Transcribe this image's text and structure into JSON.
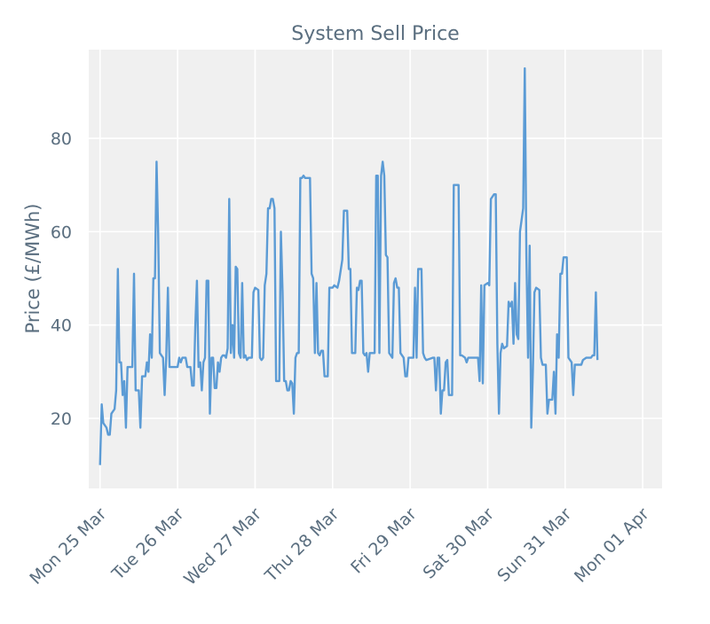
{
  "chart_data": {
    "type": "line",
    "title": "System Sell Price",
    "xlabel": "",
    "ylabel": "Price (£/MWh)",
    "ylim": [
      5,
      99
    ],
    "xlim": [
      "2024-03-24T20:30",
      "2024-04-01T06:00"
    ],
    "grid": true,
    "legend": "none",
    "colors": {
      "line": "#5b9bd5",
      "plot_background": "#f0f0f0",
      "grid": "#ffffff",
      "text": "#5a6e7f"
    },
    "x_ticks": [
      {
        "label": "Mon 25 Mar",
        "date": "2024-03-25T00:00"
      },
      {
        "label": "Tue 26 Mar",
        "date": "2024-03-26T00:00"
      },
      {
        "label": "Wed 27 Mar",
        "date": "2024-03-27T00:00"
      },
      {
        "label": "Thu 28 Mar",
        "date": "2024-03-28T00:00"
      },
      {
        "label": "Fri 29 Mar",
        "date": "2024-03-29T00:00"
      },
      {
        "label": "Sat 30 Mar",
        "date": "2024-03-30T00:00"
      },
      {
        "label": "Sun 31 Mar",
        "date": "2024-03-31T00:00"
      },
      {
        "label": "Mon 01 Apr",
        "date": "2024-04-01T00:00"
      }
    ],
    "y_ticks": [
      20,
      40,
      60,
      80
    ],
    "series": [
      {
        "points": [
          [
            "2024-03-25T00:00",
            10
          ],
          [
            "2024-03-25T00:30",
            23
          ],
          [
            "2024-03-25T01:00",
            19
          ],
          [
            "2024-03-25T02:00",
            18
          ],
          [
            "2024-03-25T02:30",
            16.5
          ],
          [
            "2024-03-25T03:00",
            16.5
          ],
          [
            "2024-03-25T03:30",
            21
          ],
          [
            "2024-03-25T04:30",
            22
          ],
          [
            "2024-03-25T05:00",
            26
          ],
          [
            "2024-03-25T05:30",
            52
          ],
          [
            "2024-03-25T06:00",
            32
          ],
          [
            "2024-03-25T06:30",
            32
          ],
          [
            "2024-03-25T07:00",
            25
          ],
          [
            "2024-03-25T07:30",
            28
          ],
          [
            "2024-03-25T08:00",
            18
          ],
          [
            "2024-03-25T08:30",
            31
          ],
          [
            "2024-03-25T10:00",
            31
          ],
          [
            "2024-03-25T10:30",
            51
          ],
          [
            "2024-03-25T11:00",
            26
          ],
          [
            "2024-03-25T12:00",
            26
          ],
          [
            "2024-03-25T12:30",
            18
          ],
          [
            "2024-03-25T13:00",
            29
          ],
          [
            "2024-03-25T14:00",
            29
          ],
          [
            "2024-03-25T14:30",
            32
          ],
          [
            "2024-03-25T15:00",
            30
          ],
          [
            "2024-03-25T15:30",
            38
          ],
          [
            "2024-03-25T16:00",
            33
          ],
          [
            "2024-03-25T16:30",
            50
          ],
          [
            "2024-03-25T17:00",
            50
          ],
          [
            "2024-03-25T17:30",
            75
          ],
          [
            "2024-03-25T18:00",
            60
          ],
          [
            "2024-03-25T18:30",
            34
          ],
          [
            "2024-03-25T19:30",
            33
          ],
          [
            "2024-03-25T20:00",
            25
          ],
          [
            "2024-03-25T20:30",
            33
          ],
          [
            "2024-03-25T21:00",
            48
          ],
          [
            "2024-03-25T21:30",
            31
          ],
          [
            "2024-03-26T00:00",
            31
          ],
          [
            "2024-03-26T00:30",
            33
          ],
          [
            "2024-03-26T01:00",
            32
          ],
          [
            "2024-03-26T01:30",
            33
          ],
          [
            "2024-03-26T02:30",
            33
          ],
          [
            "2024-03-26T03:00",
            31
          ],
          [
            "2024-03-26T04:00",
            31
          ],
          [
            "2024-03-26T04:30",
            27
          ],
          [
            "2024-03-26T05:00",
            27
          ],
          [
            "2024-03-26T05:30",
            40
          ],
          [
            "2024-03-26T06:00",
            49.5
          ],
          [
            "2024-03-26T06:30",
            31
          ],
          [
            "2024-03-26T07:00",
            32
          ],
          [
            "2024-03-26T07:30",
            26
          ],
          [
            "2024-03-26T08:00",
            32
          ],
          [
            "2024-03-26T08:30",
            33
          ],
          [
            "2024-03-26T09:00",
            49.5
          ],
          [
            "2024-03-26T09:30",
            49.5
          ],
          [
            "2024-03-26T10:00",
            21
          ],
          [
            "2024-03-26T10:30",
            33
          ],
          [
            "2024-03-26T11:00",
            33
          ],
          [
            "2024-03-26T11:30",
            26.5
          ],
          [
            "2024-03-26T12:00",
            26.5
          ],
          [
            "2024-03-26T12:30",
            32
          ],
          [
            "2024-03-26T13:00",
            30
          ],
          [
            "2024-03-26T13:30",
            33
          ],
          [
            "2024-03-26T14:00",
            33.5
          ],
          [
            "2024-03-26T14:30",
            33.5
          ],
          [
            "2024-03-26T15:00",
            33
          ],
          [
            "2024-03-26T15:30",
            35
          ],
          [
            "2024-03-26T16:00",
            67
          ],
          [
            "2024-03-26T16:30",
            34
          ],
          [
            "2024-03-26T17:00",
            40
          ],
          [
            "2024-03-26T17:30",
            33
          ],
          [
            "2024-03-26T18:00",
            52.5
          ],
          [
            "2024-03-26T18:30",
            52
          ],
          [
            "2024-03-26T19:00",
            34
          ],
          [
            "2024-03-26T19:30",
            33
          ],
          [
            "2024-03-26T20:00",
            49
          ],
          [
            "2024-03-26T20:30",
            33
          ],
          [
            "2024-03-26T21:00",
            33.5
          ],
          [
            "2024-03-26T21:30",
            32.5
          ],
          [
            "2024-03-26T22:00",
            33
          ],
          [
            "2024-03-26T23:00",
            33
          ],
          [
            "2024-03-26T23:30",
            47
          ],
          [
            "2024-03-27T00:00",
            48
          ],
          [
            "2024-03-27T01:00",
            47.5
          ],
          [
            "2024-03-27T01:30",
            33
          ],
          [
            "2024-03-27T02:00",
            32.5
          ],
          [
            "2024-03-27T02:30",
            33
          ],
          [
            "2024-03-27T03:00",
            48.5
          ],
          [
            "2024-03-27T03:30",
            51
          ],
          [
            "2024-03-27T04:00",
            65
          ],
          [
            "2024-03-27T04:30",
            65
          ],
          [
            "2024-03-27T05:00",
            67
          ],
          [
            "2024-03-27T05:30",
            67
          ],
          [
            "2024-03-27T06:00",
            65
          ],
          [
            "2024-03-27T06:30",
            28
          ],
          [
            "2024-03-27T07:30",
            28
          ],
          [
            "2024-03-27T08:00",
            60
          ],
          [
            "2024-03-27T08:30",
            47
          ],
          [
            "2024-03-27T09:00",
            28
          ],
          [
            "2024-03-27T09:30",
            28
          ],
          [
            "2024-03-27T10:00",
            26
          ],
          [
            "2024-03-27T10:30",
            26
          ],
          [
            "2024-03-27T11:00",
            28
          ],
          [
            "2024-03-27T11:30",
            27.5
          ],
          [
            "2024-03-27T12:00",
            21
          ],
          [
            "2024-03-27T12:30",
            33
          ],
          [
            "2024-03-27T13:00",
            34
          ],
          [
            "2024-03-27T13:30",
            34
          ],
          [
            "2024-03-27T14:00",
            71.5
          ],
          [
            "2024-03-27T14:30",
            71.5
          ],
          [
            "2024-03-27T15:00",
            72
          ],
          [
            "2024-03-27T15:30",
            71.5
          ],
          [
            "2024-03-27T17:00",
            71.5
          ],
          [
            "2024-03-27T17:30",
            51
          ],
          [
            "2024-03-27T18:00",
            50
          ],
          [
            "2024-03-27T18:30",
            34
          ],
          [
            "2024-03-27T19:00",
            49
          ],
          [
            "2024-03-27T19:30",
            34
          ],
          [
            "2024-03-27T20:00",
            33.5
          ],
          [
            "2024-03-27T20:30",
            34.5
          ],
          [
            "2024-03-27T21:00",
            34.5
          ],
          [
            "2024-03-27T21:30",
            29
          ],
          [
            "2024-03-27T22:30",
            29
          ],
          [
            "2024-03-27T23:00",
            48
          ],
          [
            "2024-03-28T00:00",
            48
          ],
          [
            "2024-03-28T00:30",
            48.5
          ],
          [
            "2024-03-28T01:30",
            48
          ],
          [
            "2024-03-28T02:00",
            49.5
          ],
          [
            "2024-03-28T03:00",
            54
          ],
          [
            "2024-03-28T03:30",
            64.5
          ],
          [
            "2024-03-28T04:30",
            64.5
          ],
          [
            "2024-03-28T05:00",
            52
          ],
          [
            "2024-03-28T05:30",
            52
          ],
          [
            "2024-03-28T06:00",
            34
          ],
          [
            "2024-03-28T07:00",
            34
          ],
          [
            "2024-03-28T07:30",
            48
          ],
          [
            "2024-03-28T08:00",
            47.5
          ],
          [
            "2024-03-28T08:30",
            49.5
          ],
          [
            "2024-03-28T09:00",
            49.5
          ],
          [
            "2024-03-28T09:30",
            34
          ],
          [
            "2024-03-28T10:00",
            33.5
          ],
          [
            "2024-03-28T10:30",
            34
          ],
          [
            "2024-03-28T11:00",
            30
          ],
          [
            "2024-03-28T11:30",
            34
          ],
          [
            "2024-03-28T13:00",
            34
          ],
          [
            "2024-03-28T13:30",
            72
          ],
          [
            "2024-03-28T14:00",
            72
          ],
          [
            "2024-03-28T14:30",
            34
          ],
          [
            "2024-03-28T15:00",
            72
          ],
          [
            "2024-03-28T15:30",
            75
          ],
          [
            "2024-03-28T16:00",
            72
          ],
          [
            "2024-03-28T16:30",
            55
          ],
          [
            "2024-03-28T17:00",
            54.5
          ],
          [
            "2024-03-28T17:30",
            34
          ],
          [
            "2024-03-28T18:00",
            33.5
          ],
          [
            "2024-03-28T18:30",
            33
          ],
          [
            "2024-03-28T19:00",
            49
          ],
          [
            "2024-03-28T19:30",
            50
          ],
          [
            "2024-03-28T20:00",
            48
          ],
          [
            "2024-03-28T20:30",
            48
          ],
          [
            "2024-03-28T21:00",
            34
          ],
          [
            "2024-03-28T22:00",
            33
          ],
          [
            "2024-03-28T22:30",
            29
          ],
          [
            "2024-03-28T23:00",
            29
          ],
          [
            "2024-03-28T23:30",
            33
          ],
          [
            "2024-03-29T00:00",
            33
          ],
          [
            "2024-03-29T01:00",
            33
          ],
          [
            "2024-03-29T01:30",
            48
          ],
          [
            "2024-03-29T02:00",
            33
          ],
          [
            "2024-03-29T02:30",
            52
          ],
          [
            "2024-03-29T03:30",
            52
          ],
          [
            "2024-03-29T04:00",
            34
          ],
          [
            "2024-03-29T04:30",
            33
          ],
          [
            "2024-03-29T05:00",
            32.5
          ],
          [
            "2024-03-29T07:00",
            33
          ],
          [
            "2024-03-29T07:30",
            33
          ],
          [
            "2024-03-29T08:00",
            26
          ],
          [
            "2024-03-29T08:30",
            33
          ],
          [
            "2024-03-29T09:00",
            33
          ],
          [
            "2024-03-29T09:30",
            21
          ],
          [
            "2024-03-29T10:00",
            26
          ],
          [
            "2024-03-29T10:30",
            26
          ],
          [
            "2024-03-29T11:00",
            32
          ],
          [
            "2024-03-29T11:30",
            32.5
          ],
          [
            "2024-03-29T12:00",
            25
          ],
          [
            "2024-03-29T13:00",
            25
          ],
          [
            "2024-03-29T13:30",
            70
          ],
          [
            "2024-03-29T15:00",
            70
          ],
          [
            "2024-03-29T15:30",
            33.5
          ],
          [
            "2024-03-29T16:00",
            33.5
          ],
          [
            "2024-03-29T17:00",
            33
          ],
          [
            "2024-03-29T17:30",
            32
          ],
          [
            "2024-03-29T18:00",
            33
          ],
          [
            "2024-03-29T21:00",
            33
          ],
          [
            "2024-03-29T21:30",
            28
          ],
          [
            "2024-03-29T22:00",
            48.5
          ],
          [
            "2024-03-29T22:30",
            27.5
          ],
          [
            "2024-03-29T23:00",
            48.5
          ],
          [
            "2024-03-30T00:00",
            49
          ],
          [
            "2024-03-30T00:30",
            48.5
          ],
          [
            "2024-03-30T01:00",
            67
          ],
          [
            "2024-03-30T02:00",
            68
          ],
          [
            "2024-03-30T02:30",
            68
          ],
          [
            "2024-03-30T03:00",
            36
          ],
          [
            "2024-03-30T03:30",
            21
          ],
          [
            "2024-03-30T04:00",
            34
          ],
          [
            "2024-03-30T04:30",
            36
          ],
          [
            "2024-03-30T05:00",
            35
          ],
          [
            "2024-03-30T06:00",
            35.5
          ],
          [
            "2024-03-30T06:30",
            45
          ],
          [
            "2024-03-30T07:00",
            44
          ],
          [
            "2024-03-30T07:30",
            45
          ],
          [
            "2024-03-30T08:00",
            36
          ],
          [
            "2024-03-30T08:30",
            49
          ],
          [
            "2024-03-30T09:00",
            38
          ],
          [
            "2024-03-30T09:30",
            37
          ],
          [
            "2024-03-30T10:00",
            60
          ],
          [
            "2024-03-30T11:00",
            65
          ],
          [
            "2024-03-30T11:30",
            95
          ],
          [
            "2024-03-30T12:00",
            55
          ],
          [
            "2024-03-30T12:30",
            33
          ],
          [
            "2024-03-30T13:00",
            57
          ],
          [
            "2024-03-30T13:30",
            18
          ],
          [
            "2024-03-30T14:00",
            30
          ],
          [
            "2024-03-30T14:30",
            47
          ],
          [
            "2024-03-30T15:00",
            48
          ],
          [
            "2024-03-30T16:00",
            47.5
          ],
          [
            "2024-03-30T16:30",
            33
          ],
          [
            "2024-03-30T17:00",
            31.5
          ],
          [
            "2024-03-30T18:00",
            31.5
          ],
          [
            "2024-03-30T18:30",
            21
          ],
          [
            "2024-03-30T19:00",
            24
          ],
          [
            "2024-03-30T20:00",
            24
          ],
          [
            "2024-03-30T20:30",
            30
          ],
          [
            "2024-03-30T21:00",
            21
          ],
          [
            "2024-03-30T21:30",
            38
          ],
          [
            "2024-03-30T22:00",
            33
          ],
          [
            "2024-03-30T22:30",
            51
          ],
          [
            "2024-03-30T23:00",
            51
          ],
          [
            "2024-03-30T23:30",
            54.5
          ],
          [
            "2024-03-31T00:30",
            54.5
          ],
          [
            "2024-03-31T01:00",
            33
          ],
          [
            "2024-03-31T02:00",
            32
          ],
          [
            "2024-03-31T02:30",
            25
          ],
          [
            "2024-03-31T03:00",
            31.5
          ],
          [
            "2024-03-31T05:00",
            31.5
          ],
          [
            "2024-03-31T05:30",
            32.5
          ],
          [
            "2024-03-31T06:30",
            33
          ],
          [
            "2024-03-31T08:00",
            33
          ],
          [
            "2024-03-31T08:30",
            33.5
          ],
          [
            "2024-03-31T09:00",
            33.5
          ],
          [
            "2024-03-31T09:30",
            47
          ],
          [
            "2024-03-31T10:00",
            32.5
          ]
        ]
      }
    ]
  }
}
